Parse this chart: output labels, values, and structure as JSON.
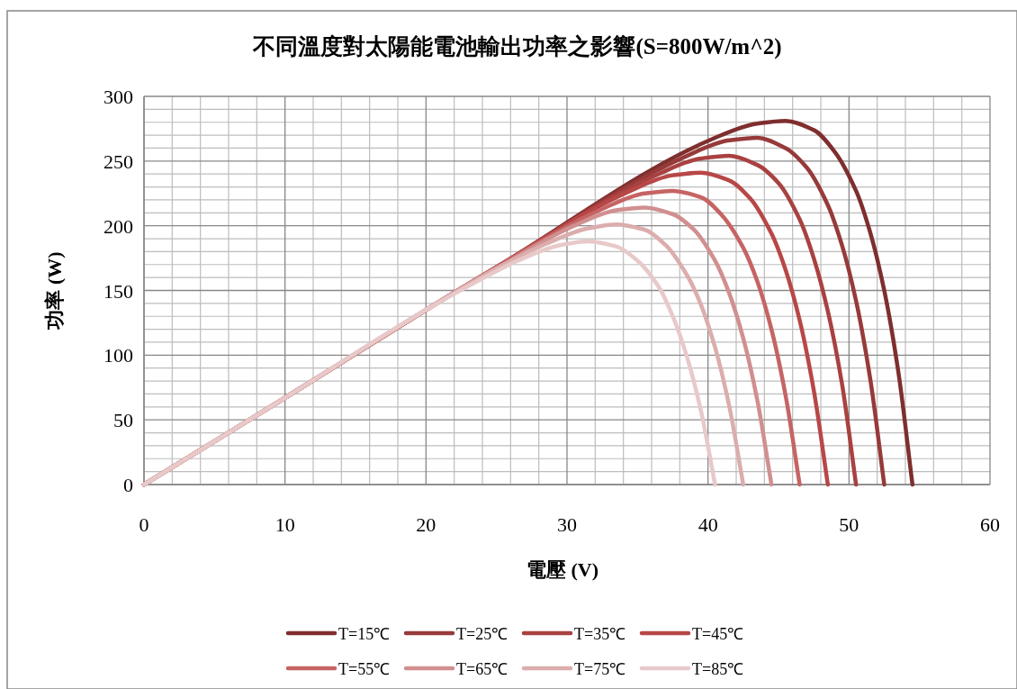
{
  "chart_data": {
    "type": "line",
    "title": "不同溫度對太陽能電池輸出功率之影響(S=800W/m^2)",
    "xlabel": "電壓 (V)",
    "ylabel": "功率 (W)",
    "xlim": [
      0,
      60
    ],
    "xticks": [
      0,
      10,
      20,
      30,
      40,
      50,
      60
    ],
    "ylim": [
      0,
      300
    ],
    "yticks": [
      0,
      50,
      100,
      150,
      200,
      250,
      300
    ],
    "grid": true,
    "legend": "bottom",
    "marker": "none",
    "line_style": "solid",
    "series": [
      {
        "name": "T=15℃",
        "color": "#7f2e2e",
        "x": [
          0,
          10,
          20,
          25,
          40.5,
          43.5,
          45.5,
          47.5,
          49,
          50.5,
          51.5,
          52.5,
          53.5,
          54.5
        ],
        "values": [
          0,
          67,
          135,
          168,
          268,
          279,
          281,
          274,
          257,
          227,
          195,
          150,
          87,
          0
        ]
      },
      {
        "name": "T=25℃",
        "color": "#973a3a",
        "x": [
          0,
          10,
          20,
          25,
          38.5,
          41.5,
          43.5,
          45.5,
          47,
          48.5,
          49.5,
          50.5,
          51.5,
          52.5
        ],
        "values": [
          0,
          67,
          135,
          168,
          254,
          266,
          268,
          260,
          245,
          216,
          185,
          142,
          82,
          0
        ]
      },
      {
        "name": "T=35℃",
        "color": "#a94141",
        "x": [
          0,
          10,
          20,
          25,
          36.5,
          39.5,
          41.5,
          43.5,
          45,
          46.5,
          47.5,
          48.5,
          49.5,
          50.5
        ],
        "values": [
          0,
          67,
          135,
          168,
          240,
          252,
          254,
          247,
          233,
          205,
          175,
          134,
          78,
          0
        ]
      },
      {
        "name": "T=45℃",
        "color": "#b84747",
        "x": [
          0,
          10,
          20,
          25,
          34.5,
          37.5,
          39.5,
          41.5,
          43,
          44.5,
          45.5,
          46.5,
          47.5,
          48.5
        ],
        "values": [
          0,
          67,
          135,
          168,
          227,
          239,
          241,
          235,
          221,
          194,
          166,
          127,
          73,
          0
        ]
      },
      {
        "name": "T=55℃",
        "color": "#c66464",
        "x": [
          0,
          10,
          20,
          25,
          32.5,
          35.5,
          37.5,
          39.5,
          41,
          42.5,
          43.5,
          44.5,
          45.5,
          46.5
        ],
        "values": [
          0,
          67,
          135,
          168,
          213,
          225,
          227,
          222,
          208,
          183,
          157,
          120,
          69,
          0
        ]
      },
      {
        "name": "T=65℃",
        "color": "#d18f8f",
        "x": [
          0,
          10,
          20,
          25,
          30.5,
          33.5,
          35.5,
          37.5,
          39,
          40.5,
          41.5,
          42.5,
          43.5,
          44.5
        ],
        "values": [
          0,
          67,
          135,
          167,
          200,
          212,
          214,
          209,
          197,
          173,
          148,
          113,
          65,
          0
        ]
      },
      {
        "name": "T=75℃",
        "color": "#dcadad",
        "x": [
          0,
          10,
          20,
          25,
          28.5,
          31.5,
          33.5,
          35.5,
          37,
          38.5,
          39.5,
          40.5,
          41.5,
          42.5
        ],
        "values": [
          0,
          67,
          135,
          167,
          186,
          198,
          201,
          197,
          185,
          162,
          139,
          106,
          61,
          0
        ]
      },
      {
        "name": "T=85℃",
        "color": "#e8c9c9",
        "x": [
          0,
          10,
          20,
          25,
          26.5,
          29.5,
          31.5,
          33.5,
          35,
          36.5,
          37.5,
          38.5,
          39.5,
          40.5
        ],
        "values": [
          0,
          67,
          135,
          165,
          173,
          185,
          188,
          184,
          173,
          153,
          130,
          99,
          57,
          0
        ]
      }
    ]
  }
}
